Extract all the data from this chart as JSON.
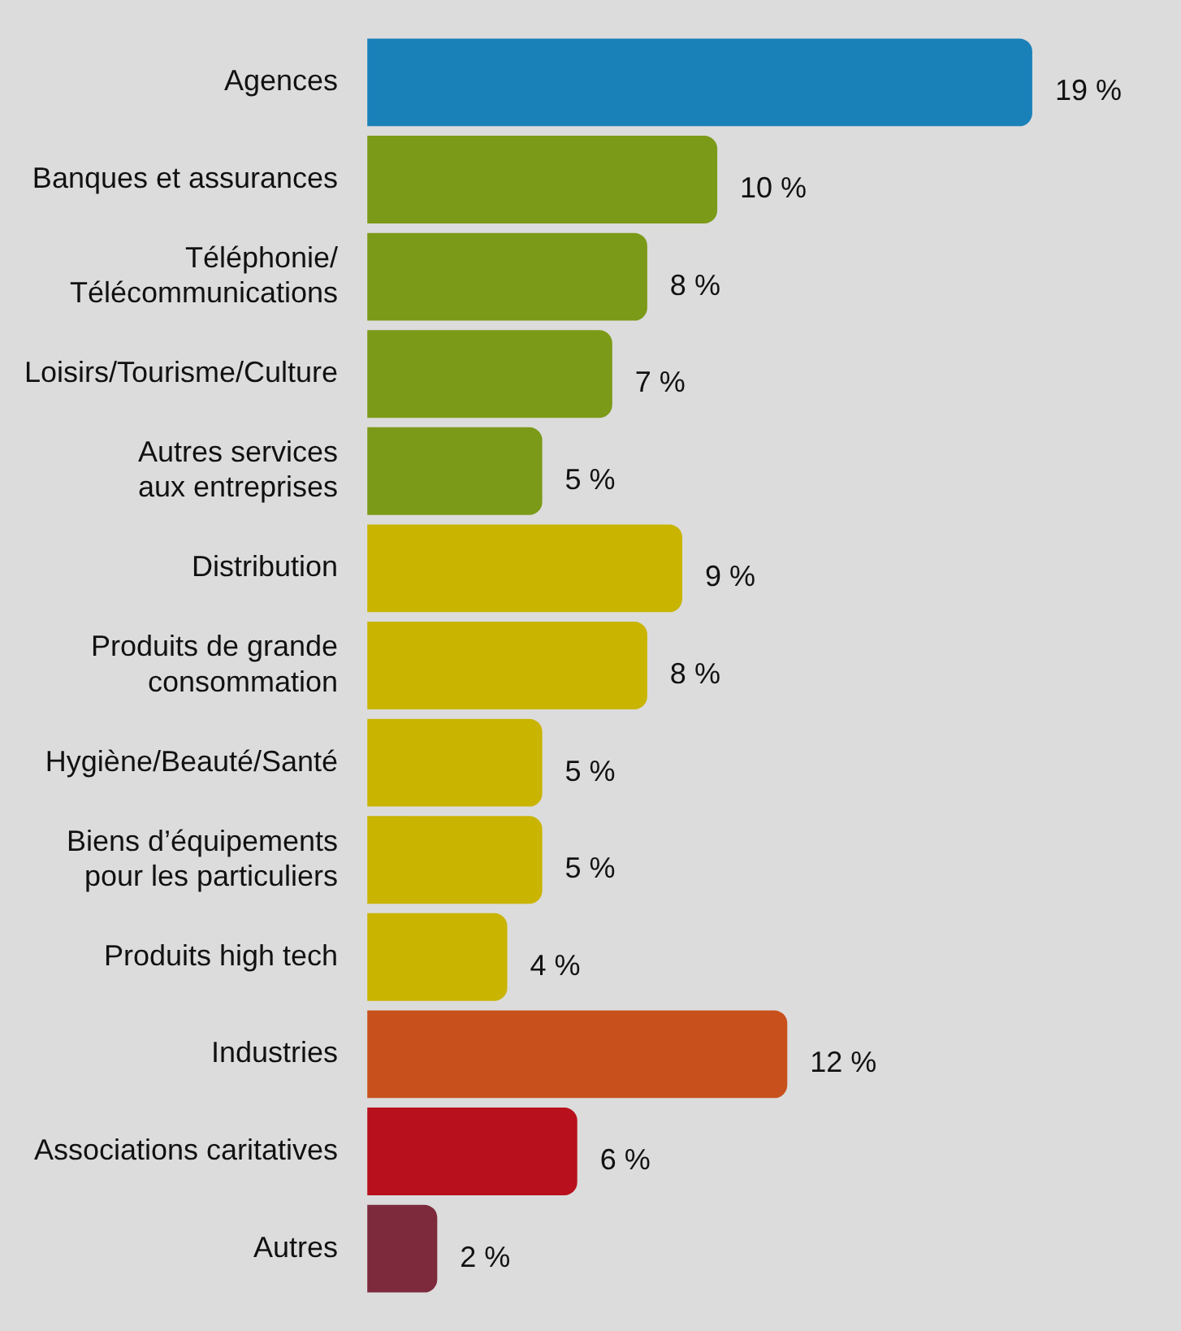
{
  "chart_data": {
    "type": "bar",
    "orientation": "horizontal",
    "categories": [
      "Agences",
      "Banques et assurances",
      "Téléphonie/\nTélécommunications",
      "Loisirs/Tourisme/Culture",
      "Autres services\naux entreprises",
      "Distribution",
      "Produits de grande\nconsommation",
      "Hygiène/Beauté/Santé",
      "Biens d’équipements\npour les particuliers",
      "Produits high tech",
      "Industries",
      "Associations caritatives",
      "Autres"
    ],
    "values": [
      19,
      10,
      8,
      7,
      5,
      9,
      8,
      5,
      5,
      4,
      12,
      6,
      2
    ],
    "value_labels": [
      "19 %",
      "10 %",
      "8 %",
      "7 %",
      "5 %",
      "9 %",
      "8 %",
      "5 %",
      "5 %",
      "4 %",
      "12 %",
      "6 %",
      "2 %"
    ],
    "colors": [
      "#1a80b8",
      "#7b9a18",
      "#7b9a18",
      "#7b9a18",
      "#7b9a18",
      "#c9b400",
      "#c9b400",
      "#c9b400",
      "#c9b400",
      "#c9b400",
      "#c8501c",
      "#b8101c",
      "#7c2a3c"
    ],
    "legend": false
  }
}
